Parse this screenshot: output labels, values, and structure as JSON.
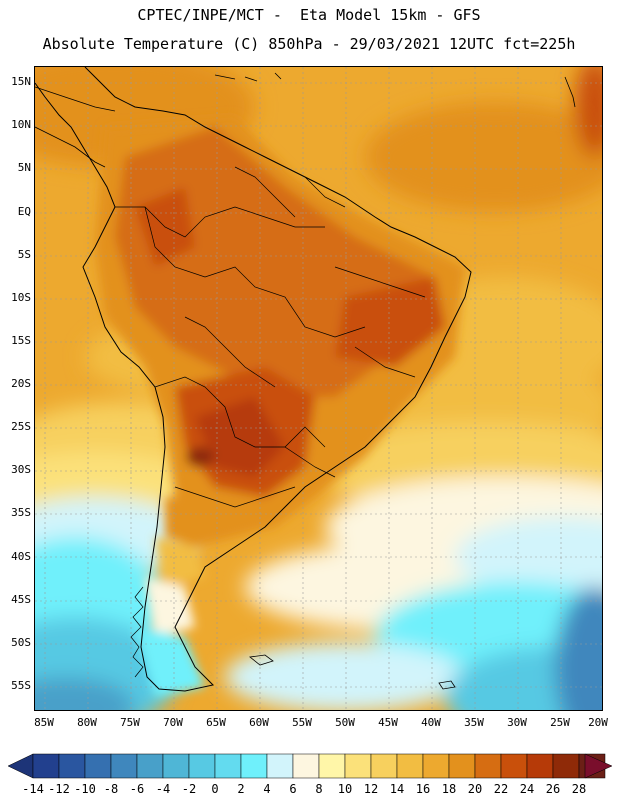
{
  "header": {
    "title_line1": "CPTEC/INPE/MCT -  Eta Model 15km - GFS",
    "title_line2": "Absolute Temperature (C) 850hPa - 29/03/2021 12UTC fct=225h"
  },
  "map": {
    "lat_labels": [
      "15N",
      "10N",
      "5N",
      "EQ",
      "5S",
      "10S",
      "15S",
      "20S",
      "25S",
      "30S",
      "35S",
      "40S",
      "45S",
      "50S",
      "55S"
    ],
    "lon_labels": [
      "85W",
      "80W",
      "75W",
      "70W",
      "65W",
      "60W",
      "55W",
      "50W",
      "45W",
      "40W",
      "35W",
      "30W",
      "25W",
      "20W"
    ]
  },
  "colorbar": {
    "labels": [
      "-14",
      "-12",
      "-10",
      "-8",
      "-6",
      "-4",
      "-2",
      "0",
      "2",
      "4",
      "6",
      "8",
      "10",
      "12",
      "14",
      "16",
      "18",
      "20",
      "22",
      "24",
      "26",
      "28"
    ],
    "colors": [
      "#22408e",
      "#2a56a0",
      "#3570b0",
      "#3f87bd",
      "#48a0c9",
      "#4fb6d6",
      "#57c9e3",
      "#63dbef",
      "#6ff0fb",
      "#d2f4fb",
      "#fdf6e0",
      "#fff6a8",
      "#fbe17a",
      "#f7d05e",
      "#f2bd42",
      "#eda92f",
      "#e3911d",
      "#d66d12",
      "#c9500b",
      "#b63a08",
      "#8f2a08",
      "#6b1f16"
    ],
    "left_arrow_color": "#1d3478",
    "right_arrow_color": "#7a0e2c"
  }
}
